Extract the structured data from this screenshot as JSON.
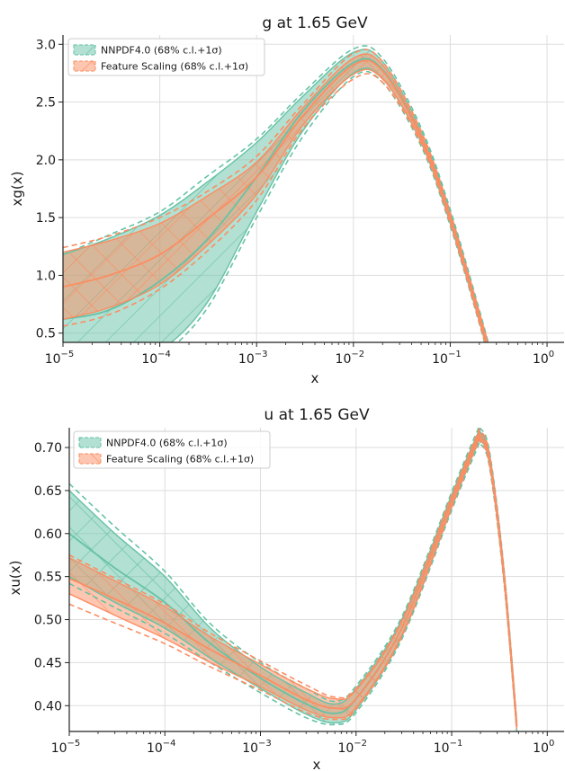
{
  "chart_data": [
    {
      "type": "line",
      "title": "g at 1.65 GeV",
      "xlabel": "x",
      "ylabel": "xg(x)",
      "xscale": "log",
      "xlim": [
        1e-05,
        1.5
      ],
      "ylim": [
        0.42,
        3.08
      ],
      "xticks": [
        {
          "v": 1e-05,
          "base": "10",
          "exp": "−5"
        },
        {
          "v": 0.0001,
          "base": "10",
          "exp": "−4"
        },
        {
          "v": 0.001,
          "base": "10",
          "exp": "−3"
        },
        {
          "v": 0.01,
          "base": "10",
          "exp": "−2"
        },
        {
          "v": 0.1,
          "base": "10",
          "exp": "−1"
        },
        {
          "v": 1,
          "base": "10",
          "exp": "0"
        }
      ],
      "yticks": [
        0.5,
        1.0,
        1.5,
        2.0,
        2.5,
        3.0
      ],
      "ytick_labels": [
        "0.5",
        "1.0",
        "1.5",
        "2.0",
        "2.5",
        "3.0"
      ],
      "grid": true,
      "legend_position": "top-left",
      "legend": [
        "NNPDF4.0 (68% c.l.+1σ)",
        "Feature Scaling (68% c.l.+1σ)"
      ],
      "series": [
        {
          "name": "NNPDF4.0 (68% c.l.+1σ)",
          "color": "#66c2a5",
          "hatch": "diagonal",
          "x": [
            1e-05,
            3e-05,
            0.0001,
            0.0003,
            0.001,
            0.003,
            0.01,
            0.02,
            0.05,
            0.1,
            0.2,
            0.25
          ],
          "upper": [
            1.18,
            1.32,
            1.52,
            1.8,
            2.15,
            2.55,
            2.93,
            2.85,
            2.25,
            1.55,
            0.68,
            0.38
          ],
          "lower": [
            0.2,
            0.22,
            0.35,
            0.75,
            1.55,
            2.25,
            2.75,
            2.7,
            2.15,
            1.45,
            0.6,
            0.3
          ],
          "cv": [
            0.62,
            0.7,
            0.95,
            1.3,
            1.85,
            2.42,
            2.84,
            2.78,
            2.2,
            1.5,
            0.64,
            0.34
          ],
          "upper_1sigma": [
            1.18,
            1.35,
            1.55,
            1.85,
            2.18,
            2.58,
            2.96,
            2.88,
            2.28,
            1.57,
            0.7,
            0.4
          ],
          "lower_1sigma": [
            0.1,
            0.12,
            0.3,
            0.7,
            1.5,
            2.2,
            2.72,
            2.67,
            2.12,
            1.43,
            0.58,
            0.28
          ]
        },
        {
          "name": "Feature Scaling (68% c.l.+1σ)",
          "color": "#fc8d62",
          "hatch": "cross",
          "x": [
            1e-05,
            3e-05,
            0.0001,
            0.0003,
            0.001,
            0.003,
            0.01,
            0.02,
            0.05,
            0.1,
            0.2,
            0.25
          ],
          "upper": [
            1.2,
            1.3,
            1.45,
            1.68,
            1.98,
            2.45,
            2.88,
            2.82,
            2.22,
            1.52,
            0.66,
            0.37
          ],
          "lower": [
            0.62,
            0.72,
            0.92,
            1.25,
            1.7,
            2.3,
            2.74,
            2.7,
            2.16,
            1.47,
            0.61,
            0.32
          ],
          "cv": [
            0.9,
            1.0,
            1.18,
            1.48,
            1.85,
            2.38,
            2.82,
            2.77,
            2.19,
            1.5,
            0.64,
            0.35
          ],
          "upper_1sigma": [
            1.24,
            1.34,
            1.5,
            1.72,
            2.03,
            2.48,
            2.92,
            2.85,
            2.25,
            1.54,
            0.68,
            0.39
          ],
          "lower_1sigma": [
            0.56,
            0.66,
            0.88,
            1.2,
            1.65,
            2.27,
            2.7,
            2.67,
            2.14,
            1.45,
            0.59,
            0.3
          ]
        }
      ]
    },
    {
      "type": "line",
      "title": "u at 1.65 GeV",
      "xlabel": "x",
      "ylabel": "xu(x)",
      "xscale": "log",
      "xlim": [
        1e-05,
        1.5
      ],
      "ylim": [
        0.37,
        0.723
      ],
      "xticks": [
        {
          "v": 1e-05,
          "base": "10",
          "exp": "−5"
        },
        {
          "v": 0.0001,
          "base": "10",
          "exp": "−4"
        },
        {
          "v": 0.001,
          "base": "10",
          "exp": "−3"
        },
        {
          "v": 0.01,
          "base": "10",
          "exp": "−2"
        },
        {
          "v": 0.1,
          "base": "10",
          "exp": "−1"
        },
        {
          "v": 1,
          "base": "10",
          "exp": "0"
        }
      ],
      "yticks": [
        0.4,
        0.45,
        0.5,
        0.55,
        0.6,
        0.65,
        0.7
      ],
      "ytick_labels": [
        "0.40",
        "0.45",
        "0.50",
        "0.55",
        "0.60",
        "0.65",
        "0.70"
      ],
      "grid": true,
      "legend_position": "top-left",
      "legend": [
        "NNPDF4.0 (68% c.l.+1σ)",
        "Feature Scaling (68% c.l.+1σ)"
      ],
      "series": [
        {
          "name": "NNPDF4.0 (68% c.l.+1σ)",
          "color": "#66c2a5",
          "hatch": "cross",
          "x": [
            1e-05,
            3e-05,
            0.0001,
            0.0003,
            0.001,
            0.003,
            0.006,
            0.01,
            0.03,
            0.1,
            0.18,
            0.2,
            0.25,
            0.35,
            0.48
          ],
          "upper": [
            0.65,
            0.6,
            0.55,
            0.49,
            0.445,
            0.415,
            0.402,
            0.42,
            0.5,
            0.645,
            0.712,
            0.718,
            0.69,
            0.56,
            0.38
          ],
          "lower": [
            0.55,
            0.52,
            0.49,
            0.455,
            0.42,
            0.39,
            0.38,
            0.395,
            0.48,
            0.63,
            0.7,
            0.708,
            0.68,
            0.55,
            0.372
          ],
          "cv": [
            0.6,
            0.56,
            0.52,
            0.472,
            0.432,
            0.402,
            0.391,
            0.408,
            0.49,
            0.638,
            0.706,
            0.713,
            0.685,
            0.555,
            0.376
          ],
          "upper_1sigma": [
            0.658,
            0.608,
            0.556,
            0.495,
            0.45,
            0.42,
            0.405,
            0.423,
            0.503,
            0.648,
            0.716,
            0.722,
            0.694,
            0.563,
            0.382
          ],
          "lower_1sigma": [
            0.542,
            0.514,
            0.484,
            0.45,
            0.415,
            0.386,
            0.378,
            0.392,
            0.477,
            0.627,
            0.696,
            0.704,
            0.676,
            0.547,
            0.37
          ]
        },
        {
          "name": "Feature Scaling (68% c.l.+1σ)",
          "color": "#fc8d62",
          "hatch": "diagonal",
          "x": [
            1e-05,
            3e-05,
            0.0001,
            0.0003,
            0.001,
            0.003,
            0.006,
            0.01,
            0.03,
            0.1,
            0.18,
            0.2,
            0.25,
            0.35,
            0.48
          ],
          "upper": [
            0.572,
            0.545,
            0.515,
            0.48,
            0.448,
            0.42,
            0.408,
            0.418,
            0.497,
            0.642,
            0.71,
            0.716,
            0.688,
            0.558,
            0.379
          ],
          "lower": [
            0.53,
            0.505,
            0.478,
            0.45,
            0.422,
            0.395,
            0.386,
            0.398,
            0.482,
            0.632,
            0.702,
            0.709,
            0.681,
            0.551,
            0.373
          ],
          "cv": [
            0.548,
            0.524,
            0.496,
            0.465,
            0.435,
            0.407,
            0.397,
            0.408,
            0.49,
            0.637,
            0.706,
            0.712,
            0.684,
            0.554,
            0.376
          ],
          "upper_1sigma": [
            0.575,
            0.548,
            0.518,
            0.484,
            0.452,
            0.424,
            0.41,
            0.42,
            0.499,
            0.644,
            0.712,
            0.719,
            0.691,
            0.561,
            0.381
          ],
          "lower_1sigma": [
            0.518,
            0.496,
            0.472,
            0.445,
            0.418,
            0.392,
            0.384,
            0.396,
            0.48,
            0.63,
            0.7,
            0.706,
            0.678,
            0.548,
            0.371
          ]
        }
      ]
    }
  ]
}
